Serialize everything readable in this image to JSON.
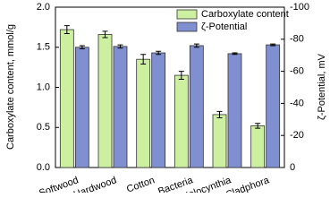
{
  "chart_data": {
    "type": "bar",
    "categories": [
      "Softwood",
      "Hardwood",
      "Cotton",
      "Bacteria",
      "Halocynthia",
      "Cladphora"
    ],
    "series": [
      {
        "name": "Carboxylate content",
        "color": "#ccf0a0",
        "values": [
          1.72,
          1.66,
          1.35,
          1.15,
          0.66,
          0.52
        ],
        "errors": [
          0.05,
          0.04,
          0.06,
          0.05,
          0.04,
          0.03
        ]
      },
      {
        "name": "ζ-Potential",
        "color": "#7f8fcf",
        "axis": "y2",
        "values": [
          -75,
          -75.5,
          -71.5,
          -76,
          -71,
          -76.5
        ],
        "errors": [
          1,
          1,
          1,
          1,
          0.5,
          0.5
        ]
      }
    ],
    "ylabel": "Carboxylate content, mmol/g",
    "y2label": "ζ-Potential, mV",
    "ylim": [
      0,
      2.0
    ],
    "yticks": [
      {
        "value": 0,
        "label": "0.0"
      },
      0.5,
      {
        "value": 1.0,
        "label": "1.0"
      },
      1.5,
      {
        "value": 2.0,
        "label": "2.0"
      }
    ],
    "y2lim": [
      0,
      -100
    ],
    "y2ticks": [
      0,
      -20,
      -40,
      -60,
      -80,
      -100
    ],
    "legend": "upper right"
  }
}
